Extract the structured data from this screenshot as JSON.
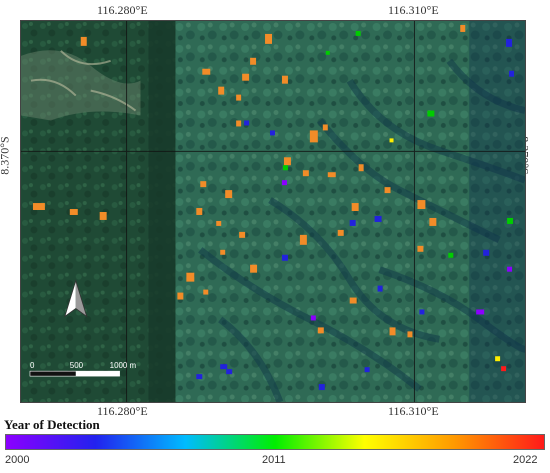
{
  "map": {
    "longitude_labels": [
      "116.280°E",
      "116.310°E"
    ],
    "latitude_label": "8.370°S",
    "scale_bar": {
      "labels": [
        "0",
        "500",
        "1000 m"
      ]
    },
    "north_arrow": "north-arrow-icon"
  },
  "legend": {
    "title": "Year of Detection",
    "min_label": "2000",
    "mid_label": "2011",
    "max_label": "2022",
    "gradient_colors": [
      "#8b00ff",
      "#2222ee",
      "#00bbff",
      "#00ee00",
      "#ffff00",
      "#ff9900",
      "#ff1a1a"
    ]
  }
}
